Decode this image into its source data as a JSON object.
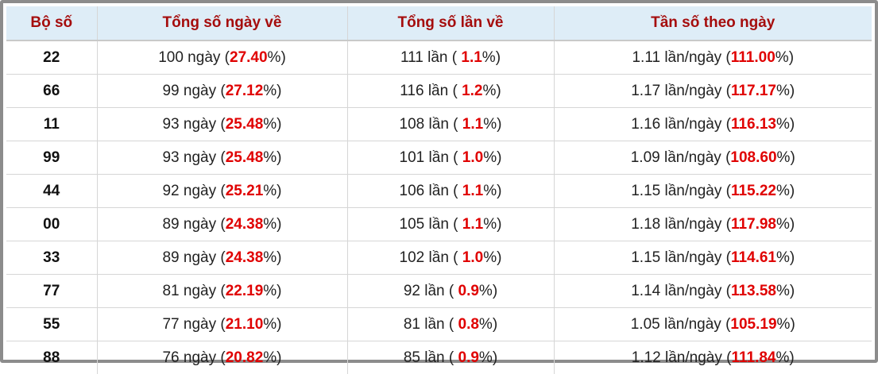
{
  "table": {
    "header": [
      "Bộ số",
      "Tổng số ngày về",
      "Tổng số lần về",
      "Tần số theo ngày"
    ],
    "rows": [
      [
        "22",
        [
          "100 ngày (",
          "27.40",
          "%)"
        ],
        [
          "111 lần ( ",
          "1.1",
          "%)"
        ],
        [
          "1.11 lần/ngày (",
          "111.00",
          "%)"
        ]
      ],
      [
        "66",
        [
          "99 ngày (",
          "27.12",
          "%)"
        ],
        [
          "116 lần ( ",
          "1.2",
          "%)"
        ],
        [
          "1.17 lần/ngày (",
          "117.17",
          "%)"
        ]
      ],
      [
        "11",
        [
          "93 ngày (",
          "25.48",
          "%)"
        ],
        [
          "108 lần ( ",
          "1.1",
          "%)"
        ],
        [
          "1.16 lần/ngày (",
          "116.13",
          "%)"
        ]
      ],
      [
        "99",
        [
          "93 ngày (",
          "25.48",
          "%)"
        ],
        [
          "101 lần ( ",
          "1.0",
          "%)"
        ],
        [
          "1.09 lần/ngày (",
          "108.60",
          "%)"
        ]
      ],
      [
        "44",
        [
          "92 ngày (",
          "25.21",
          "%)"
        ],
        [
          "106 lần ( ",
          "1.1",
          "%)"
        ],
        [
          "1.15 lần/ngày (",
          "115.22",
          "%)"
        ]
      ],
      [
        "00",
        [
          "89 ngày (",
          "24.38",
          "%)"
        ],
        [
          "105 lần ( ",
          "1.1",
          "%)"
        ],
        [
          "1.18 lần/ngày (",
          "117.98",
          "%)"
        ]
      ],
      [
        "33",
        [
          "89 ngày (",
          "24.38",
          "%)"
        ],
        [
          "102 lần ( ",
          "1.0",
          "%)"
        ],
        [
          "1.15 lần/ngày (",
          "114.61",
          "%)"
        ]
      ],
      [
        "77",
        [
          "81 ngày (",
          "22.19",
          "%)"
        ],
        [
          "92 lần ( ",
          "0.9",
          "%)"
        ],
        [
          "1.14 lần/ngày (",
          "113.58",
          "%)"
        ]
      ],
      [
        "55",
        [
          "77 ngày (",
          "21.10",
          "%)"
        ],
        [
          "81 lần ( ",
          "0.8",
          "%)"
        ],
        [
          "1.05 lần/ngày (",
          "105.19",
          "%)"
        ]
      ],
      [
        "88",
        [
          "76 ngày (",
          "20.82",
          "%)"
        ],
        [
          "85 lần ( ",
          "0.9",
          "%)"
        ],
        [
          "1.12 lần/ngày (",
          "111.84",
          "%)"
        ]
      ]
    ]
  }
}
